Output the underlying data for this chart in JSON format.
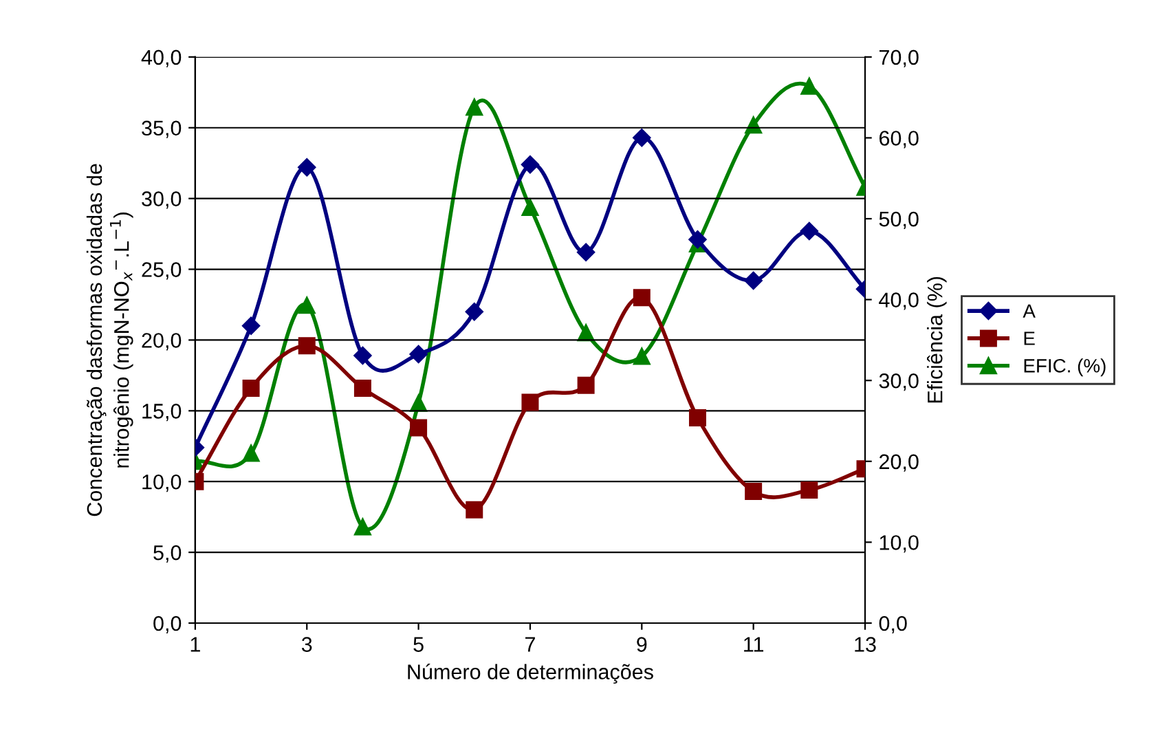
{
  "chart_data": {
    "type": "line",
    "xlabel": "Número de determinações",
    "ylabel": "Concentração dasformas oxidadas de\nnitrogênio (mgN-NO$_{x}$$^{−}$.L$^{−1}$)",
    "y2label": "Eficiência (%)",
    "x": [
      1,
      2,
      3,
      4,
      5,
      6,
      7,
      8,
      9,
      10,
      11,
      12,
      13
    ],
    "xlim": [
      1,
      13
    ],
    "xticks": [
      1,
      3,
      5,
      7,
      9,
      11,
      13
    ],
    "ylim": [
      0,
      40
    ],
    "yticks": [
      {
        "value": 0,
        "label": "0,0"
      },
      {
        "value": 5,
        "label": "5,0"
      },
      {
        "value": 10,
        "label": "10,0"
      },
      {
        "value": 15,
        "label": "15,0"
      },
      {
        "value": 20,
        "label": "20,0"
      },
      {
        "value": 25,
        "label": "25,0"
      },
      {
        "value": 30,
        "label": "30,0"
      },
      {
        "value": 35,
        "label": "35,0"
      },
      {
        "value": 40,
        "label": "40,0"
      }
    ],
    "y2lim": [
      0,
      70
    ],
    "y2ticks": [
      {
        "value": 0,
        "label": "0,0"
      },
      {
        "value": 10,
        "label": "10,0"
      },
      {
        "value": 20,
        "label": "20,0"
      },
      {
        "value": 30,
        "label": "30,0"
      },
      {
        "value": 40,
        "label": "40,0"
      },
      {
        "value": 50,
        "label": "50,0"
      },
      {
        "value": 60,
        "label": "60,0"
      },
      {
        "value": 70,
        "label": "70,0"
      }
    ],
    "grid": "y",
    "legend": "right",
    "series": [
      {
        "name": "A",
        "color": "#000080",
        "marker": "diamond",
        "values": [
          12.4,
          21.0,
          32.2,
          18.9,
          19.0,
          22.0,
          32.4,
          26.2,
          34.3,
          27.1,
          24.2,
          27.7,
          23.6
        ]
      },
      {
        "name": "E",
        "color": "#800000",
        "marker": "square",
        "values": [
          10.0,
          16.6,
          19.6,
          16.6,
          13.8,
          8.0,
          15.6,
          16.8,
          23.0,
          14.5,
          9.3,
          9.4,
          10.9
        ]
      },
      {
        "name": "EFIC. (%)",
        "color": "#008000",
        "marker": "triangle",
        "axis": "y2",
        "values": [
          20.0,
          21.0,
          39.3,
          11.9,
          27.2,
          63.8,
          51.4,
          35.9,
          33.0,
          46.9,
          61.6,
          66.4,
          53.9
        ]
      }
    ]
  }
}
